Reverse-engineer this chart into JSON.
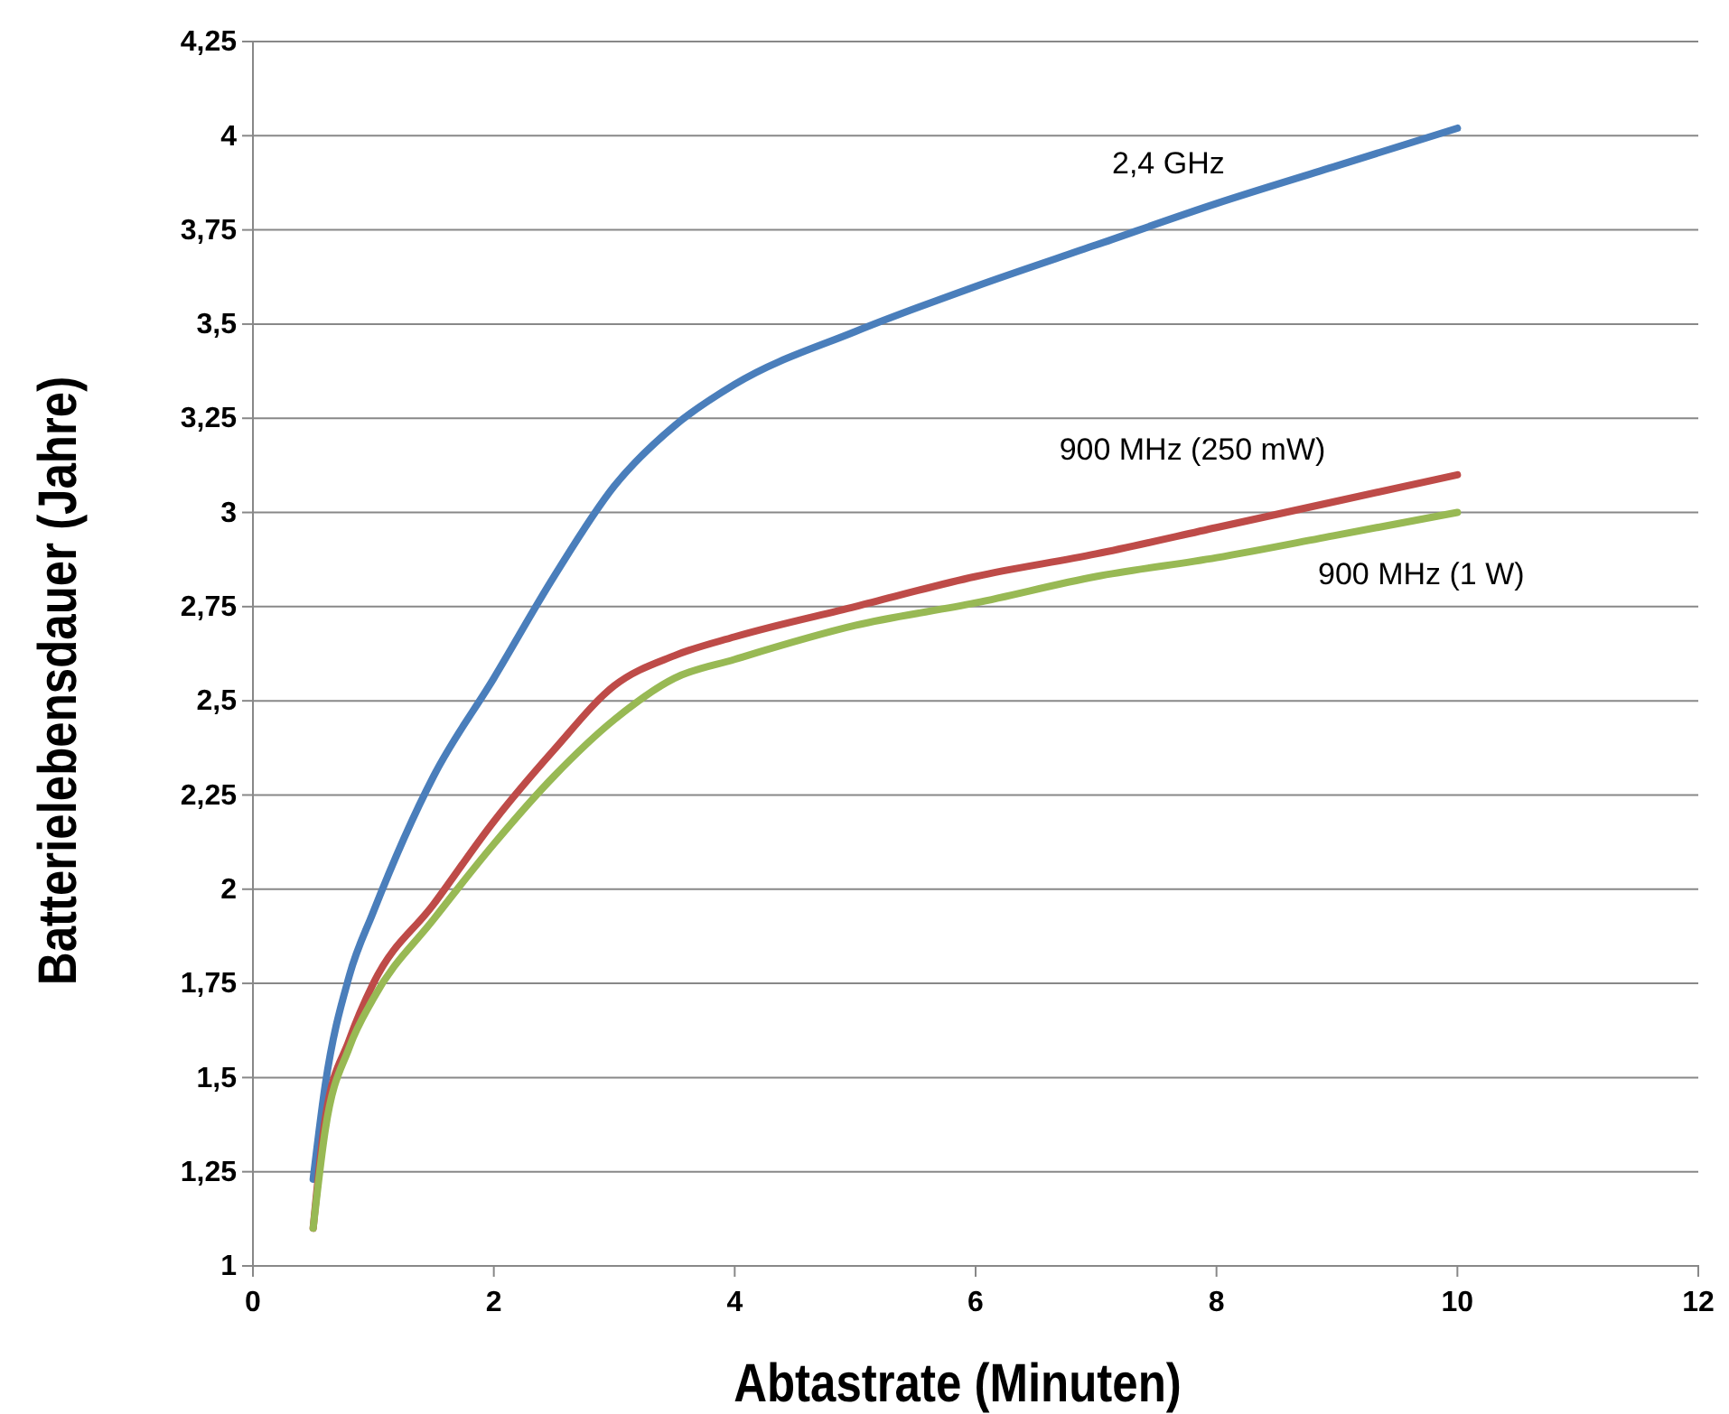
{
  "chart_data": {
    "type": "line",
    "xlabel": "Abtastrate (Minuten)",
    "ylabel": "Batterielebensdauer (Jahre)",
    "x": [
      0.5,
      0.6,
      0.8,
      1,
      1.5,
      2,
      2.5,
      3,
      3.5,
      4,
      5,
      6,
      7,
      8,
      9,
      10
    ],
    "series": [
      {
        "name": "2,4 GHz",
        "color": "#4a7ebb",
        "values": [
          1.23,
          1.48,
          1.77,
          1.94,
          2.3,
          2.56,
          2.83,
          3.07,
          3.23,
          3.34,
          3.48,
          3.6,
          3.71,
          3.82,
          3.92,
          4.02
        ]
      },
      {
        "name": "900 MHz (250 mW)",
        "color": "#be4b48",
        "values": [
          1.1,
          1.39,
          1.6,
          1.75,
          1.96,
          2.18,
          2.37,
          2.54,
          2.62,
          2.67,
          2.75,
          2.83,
          2.89,
          2.96,
          3.03,
          3.1
        ]
      },
      {
        "name": "900 MHz (1 W)",
        "color": "#98b954",
        "values": [
          1.1,
          1.36,
          1.58,
          1.71,
          1.92,
          2.12,
          2.3,
          2.45,
          2.56,
          2.61,
          2.7,
          2.76,
          2.83,
          2.88,
          2.94,
          3.0
        ]
      }
    ],
    "xlim": [
      0,
      12
    ],
    "xticks": [
      0,
      2,
      4,
      6,
      8,
      10,
      12
    ],
    "ylim": [
      1,
      4.25
    ],
    "yticks": [
      1,
      {
        "value": 1.25,
        "label": "1,25"
      },
      {
        "value": 1.5,
        "label": "1,5"
      },
      {
        "value": 1.75,
        "label": "1,75"
      },
      2,
      {
        "value": 2.25,
        "label": "2,25"
      },
      {
        "value": 2.5,
        "label": "2,5"
      },
      {
        "value": 2.75,
        "label": "2,75"
      },
      3,
      {
        "value": 3.25,
        "label": "3,25"
      },
      {
        "value": 3.5,
        "label": "3,5"
      },
      {
        "value": 3.75,
        "label": "3,75"
      },
      4,
      {
        "value": 4.25,
        "label": "4,25"
      }
    ],
    "grid": "y",
    "marker": "none",
    "line_style": "solid"
  }
}
